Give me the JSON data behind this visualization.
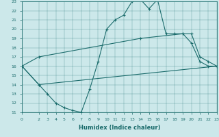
{
  "xlabel": "Humidex (Indice chaleur)",
  "bg_color": "#cce8ea",
  "line_color": "#1a6b6b",
  "xlim": [
    0,
    23
  ],
  "ylim": [
    11,
    23
  ],
  "xticks": [
    0,
    2,
    3,
    4,
    5,
    6,
    7,
    8,
    9,
    10,
    11,
    12,
    13,
    14,
    15,
    16,
    17,
    18,
    19,
    20,
    21,
    22,
    23
  ],
  "yticks": [
    11,
    12,
    13,
    14,
    15,
    16,
    17,
    18,
    19,
    20,
    21,
    22,
    23
  ],
  "line1_x": [
    0,
    2,
    3,
    4,
    5,
    6,
    7,
    8,
    9,
    10,
    11,
    12,
    13,
    14,
    15,
    16,
    17,
    18,
    19,
    20,
    21,
    22,
    23
  ],
  "line1_y": [
    16,
    14,
    13,
    12,
    11.5,
    11.2,
    11,
    13.5,
    16.5,
    20,
    21,
    21.5,
    23,
    23.2,
    22.2,
    23.2,
    19.5,
    19.5,
    19.5,
    18.5,
    16.5,
    16,
    16
  ],
  "line2_x": [
    0,
    2,
    23
  ],
  "line2_y": [
    16,
    14.0,
    16
  ],
  "line3_x": [
    0,
    2,
    14,
    19,
    20,
    21,
    22,
    23
  ],
  "line3_y": [
    16,
    17.0,
    19.0,
    19.5,
    19.5,
    17.0,
    16.5,
    16
  ]
}
